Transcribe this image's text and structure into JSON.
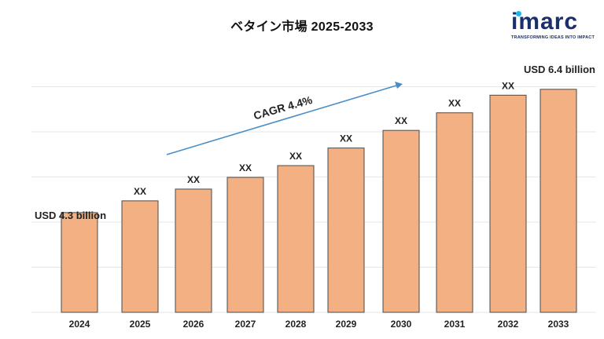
{
  "brand": {
    "name": "imarc",
    "tagline": "TRANSFORMING IDEAS INTO IMPACT",
    "color": "#1a2f6b",
    "accent": "#1fb5e8"
  },
  "chart_data": {
    "type": "bar",
    "title": "ベタイン市場 2025-2033",
    "categories": [
      "2024",
      "2025",
      "2026",
      "2027",
      "2028",
      "2029",
      "2030",
      "2031",
      "2032",
      "2033"
    ],
    "series": [
      {
        "values": [
          4.3,
          4.5,
          4.7,
          4.9,
          5.1,
          5.4,
          5.7,
          6.0,
          6.3,
          6.4
        ]
      }
    ],
    "data_labels": [
      "",
      "XX",
      "XX",
      "XX",
      "XX",
      "XX",
      "XX",
      "XX",
      "XX",
      ""
    ],
    "annotations": {
      "start": "USD 4.3 billion",
      "end": "USD 6.4 billion",
      "cagr": "CAGR 4.4%"
    },
    "xlabel": "",
    "ylabel": "",
    "ylim": [
      2.6,
      7.2
    ],
    "grid": true,
    "bar_color": "#f3b183",
    "bar_border": "#4a4a4a",
    "arrow_color": "#4a8ec8"
  }
}
